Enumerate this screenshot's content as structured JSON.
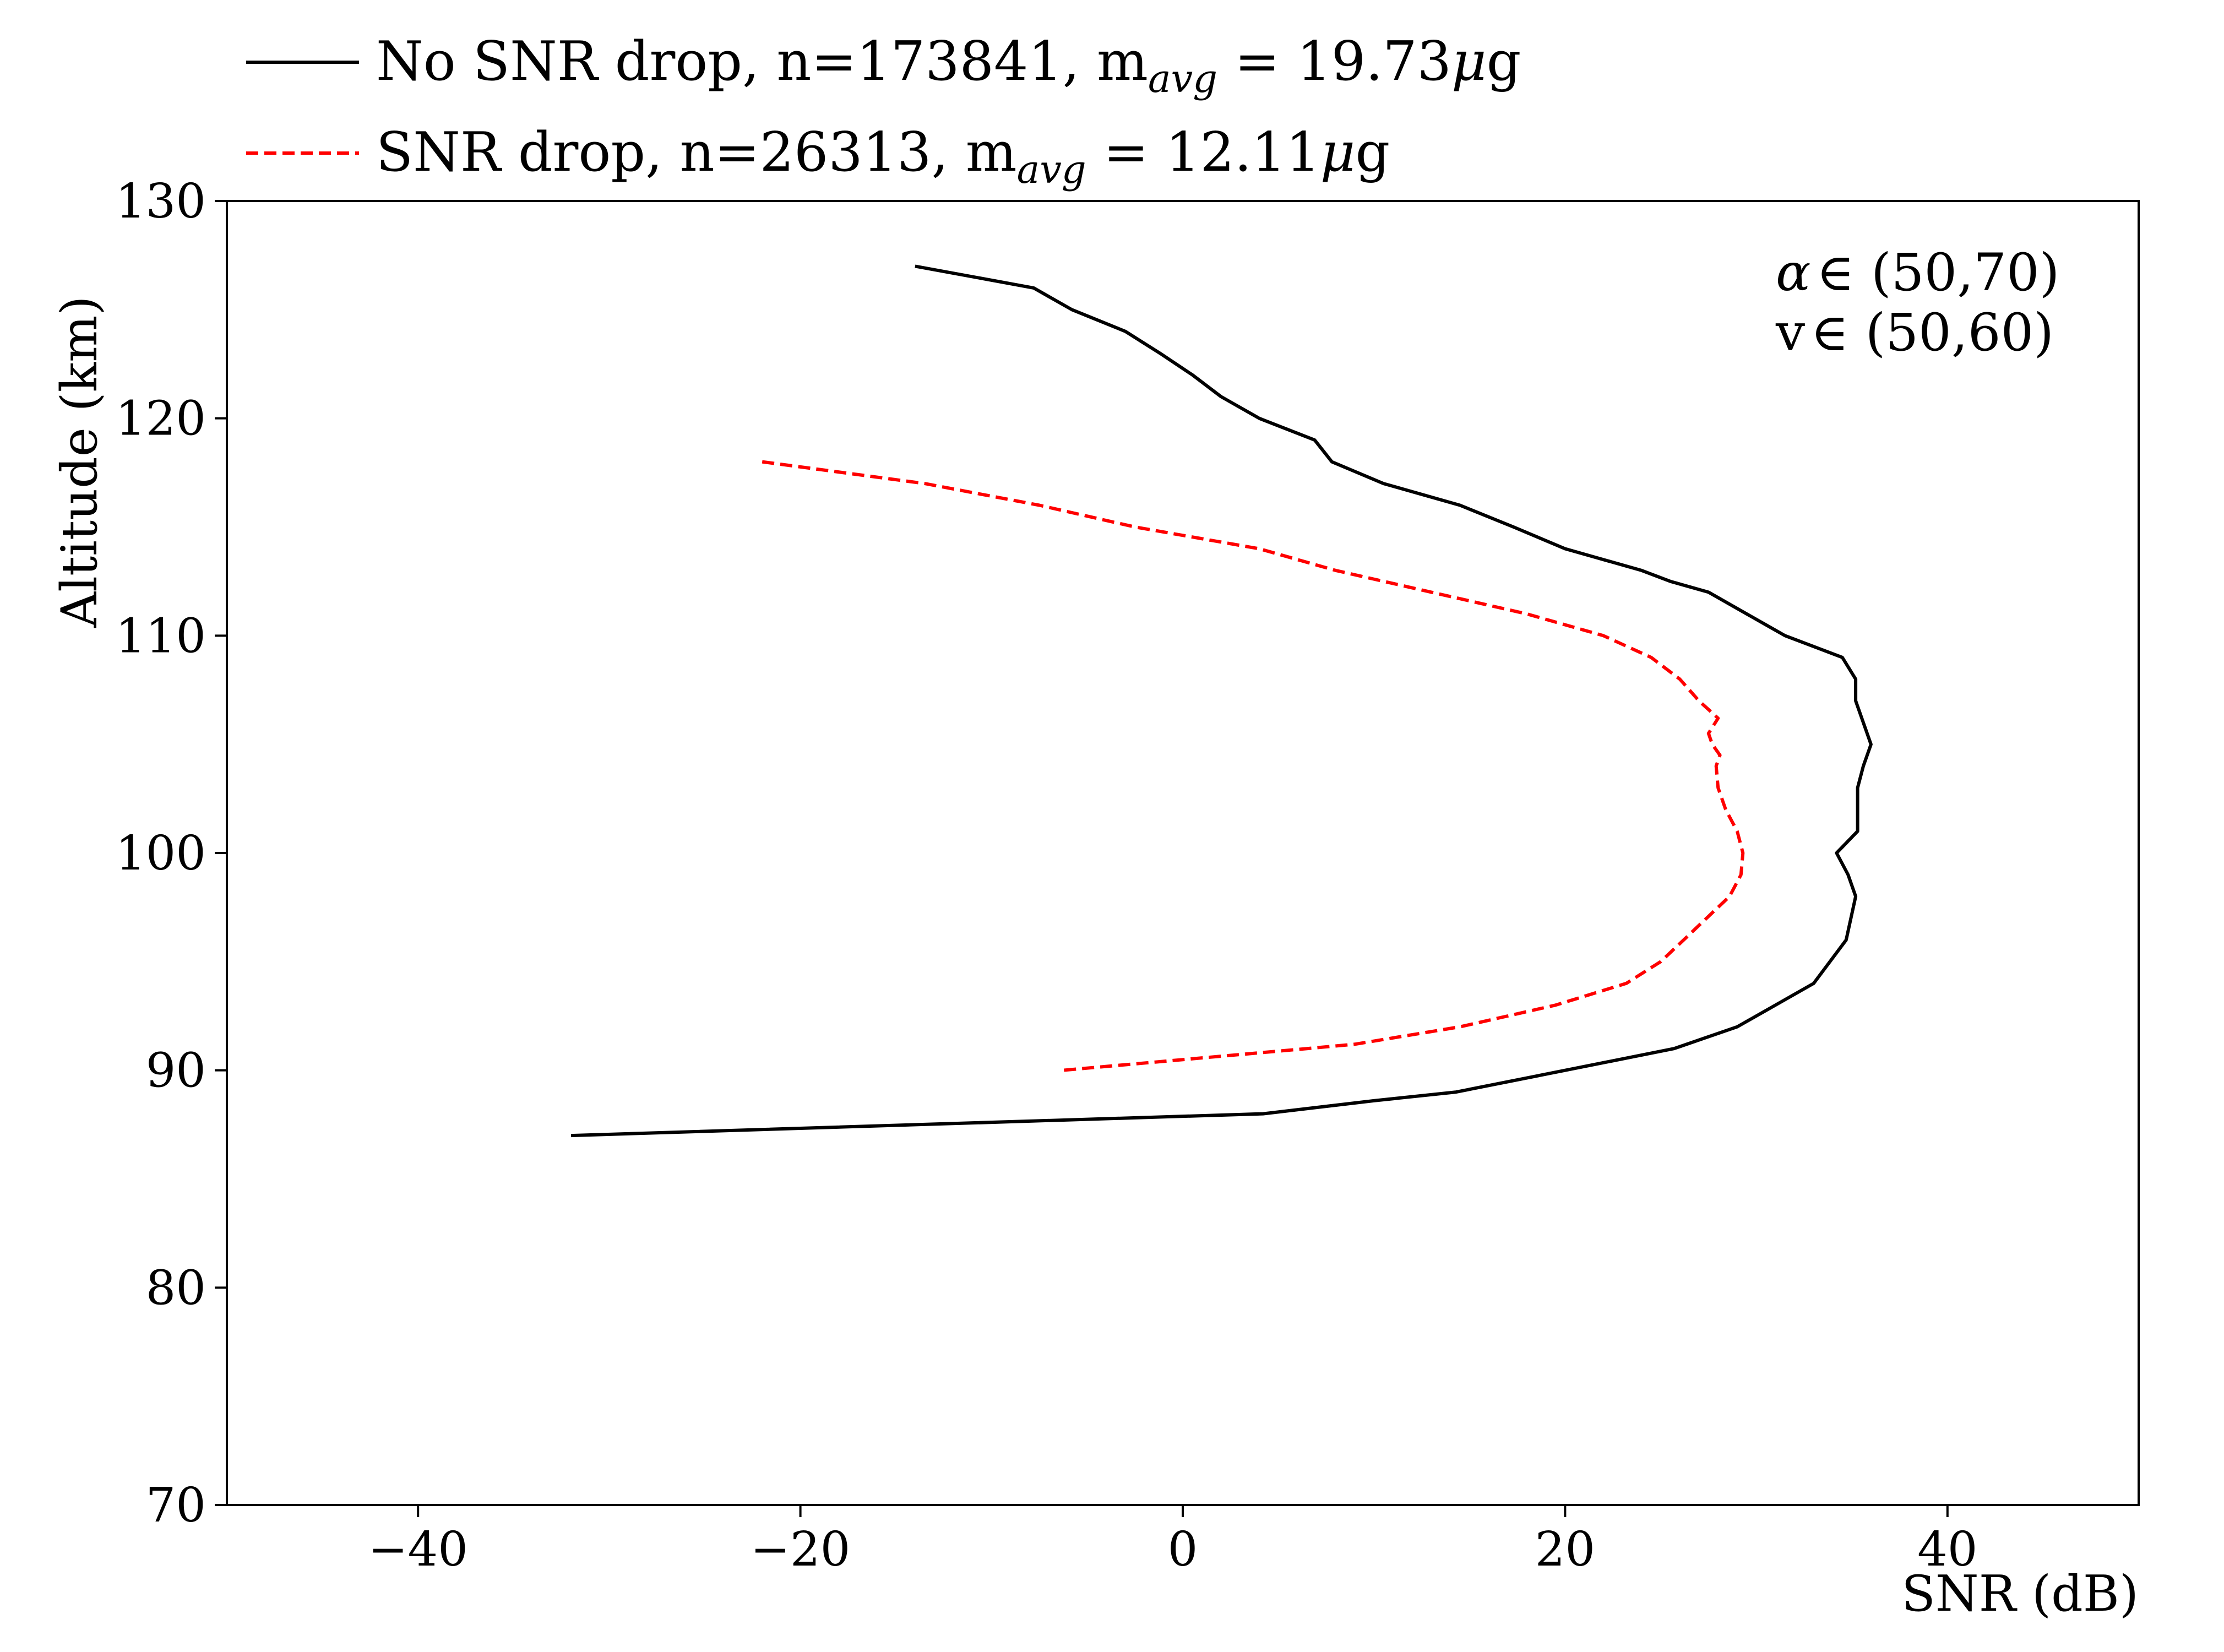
{
  "chart_data": {
    "type": "line",
    "xlabel": "SNR (dB)",
    "ylabel": "Altitude (km)",
    "xlim": [
      -50,
      50
    ],
    "ylim": [
      70,
      130
    ],
    "xticks": [
      -40,
      -20,
      0,
      20,
      40
    ],
    "yticks": [
      70,
      80,
      90,
      100,
      110,
      120,
      130
    ],
    "xtick_labels": [
      "−40",
      "−20",
      "0",
      "20",
      "40"
    ],
    "ytick_labels": [
      "70",
      "80",
      "90",
      "100",
      "110",
      "120",
      "130"
    ],
    "grid": false,
    "legend_position": "top-left, above plot",
    "annotations": {
      "alpha_line": {
        "symbol": "α",
        "text": "∈ (50,70)"
      },
      "v_line": {
        "symbol": "v",
        "text": "∈ (50,60)"
      }
    },
    "series": [
      {
        "name": "No SNR drop",
        "legend": {
          "main": "No SNR drop,  n=173841,  m",
          "sub": "avg",
          "rest": " = 19.73",
          "mu": "μ",
          "unit": "g"
        },
        "color": "#000000",
        "style": "solid",
        "points": [
          [
            -14,
            127
          ],
          [
            -7.8,
            126
          ],
          [
            -5.8,
            125
          ],
          [
            -3,
            124
          ],
          [
            -1.2,
            123
          ],
          [
            0.5,
            122
          ],
          [
            2,
            121
          ],
          [
            4,
            120
          ],
          [
            6.9,
            119
          ],
          [
            7.8,
            118
          ],
          [
            10.5,
            117
          ],
          [
            14.5,
            116
          ],
          [
            17.3,
            115
          ],
          [
            20,
            114
          ],
          [
            24,
            113
          ],
          [
            25.5,
            112.5
          ],
          [
            27.5,
            112
          ],
          [
            29.5,
            111
          ],
          [
            31.5,
            110
          ],
          [
            34.5,
            109
          ],
          [
            35.2,
            108
          ],
          [
            35.2,
            107
          ],
          [
            35.6,
            106
          ],
          [
            36,
            105
          ],
          [
            35.6,
            104
          ],
          [
            35.3,
            103
          ],
          [
            35.3,
            101
          ],
          [
            34.2,
            100
          ],
          [
            34.8,
            99
          ],
          [
            35.2,
            98
          ],
          [
            34.7,
            96
          ],
          [
            33,
            94
          ],
          [
            31,
            93
          ],
          [
            29,
            92
          ],
          [
            25.7,
            91
          ],
          [
            20,
            90
          ],
          [
            14.3,
            89
          ],
          [
            10,
            88.6
          ],
          [
            4.2,
            88
          ],
          [
            -32,
            87
          ]
        ]
      },
      {
        "name": "SNR drop",
        "legend": {
          "main": "SNR drop,  n=26313,  m",
          "sub": "avg",
          "rest": " = 12.11",
          "mu": "μ",
          "unit": "g"
        },
        "color": "#ff0000",
        "style": "dashed",
        "points": [
          [
            -22,
            118
          ],
          [
            -13.5,
            117
          ],
          [
            -7.5,
            116
          ],
          [
            -2.5,
            115
          ],
          [
            4,
            114
          ],
          [
            8,
            113
          ],
          [
            13,
            112
          ],
          [
            18,
            111
          ],
          [
            22,
            110
          ],
          [
            24.5,
            109
          ],
          [
            26,
            108
          ],
          [
            27,
            107
          ],
          [
            28,
            106.2
          ],
          [
            27.5,
            105.5
          ],
          [
            27.7,
            105
          ],
          [
            28.1,
            104.5
          ],
          [
            27.9,
            104
          ],
          [
            28,
            103
          ],
          [
            28.4,
            102
          ],
          [
            29,
            101
          ],
          [
            29.3,
            100
          ],
          [
            29.2,
            99
          ],
          [
            28.6,
            98
          ],
          [
            27.4,
            97
          ],
          [
            26.2,
            96
          ],
          [
            25,
            95
          ],
          [
            23.2,
            94
          ],
          [
            19.5,
            93
          ],
          [
            14.5,
            92
          ],
          [
            9,
            91.2
          ],
          [
            6.5,
            91
          ],
          [
            -6.3,
            90
          ]
        ]
      }
    ]
  }
}
